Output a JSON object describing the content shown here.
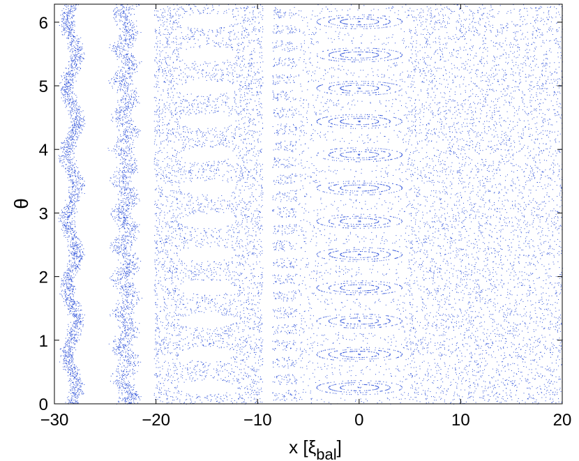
{
  "chart_data": {
    "type": "scatter",
    "title": "",
    "xlabel": {
      "base": "x [ξ",
      "subscript": "bal",
      "suffix": "]"
    },
    "ylabel": "θ",
    "xlim": [
      -30,
      20
    ],
    "ylim": [
      0,
      6.2832
    ],
    "xticks": [
      -30,
      -20,
      -10,
      0,
      10,
      20
    ],
    "xtick_labels": [
      "−30",
      "−20",
      "−10",
      "0",
      "10",
      "20"
    ],
    "yticks": [
      0,
      1,
      2,
      3,
      4,
      5,
      6
    ],
    "ytick_labels": [
      "0",
      "1",
      "2",
      "3",
      "4",
      "5",
      "6"
    ],
    "grid": false,
    "legend": "none",
    "point_color": "#2b4fd8",
    "regions": [
      {
        "kind": "wavy-band",
        "center_x": -28.3,
        "half_width": 0.9,
        "amplitude": 0.5,
        "wavelength": 1.05
      },
      {
        "kind": "wavy-band",
        "center_x": -23.0,
        "half_width": 1.3,
        "amplitude": 0.45,
        "wavelength": 0.52
      },
      {
        "kind": "island-chain",
        "x_min": -20.2,
        "x_max": -9.5,
        "island_center_x": -15.0,
        "island_half_width": 2.8,
        "island_half_height": 0.11,
        "island_count": 12
      },
      {
        "kind": "crescents",
        "x_min": -9.0,
        "x_max": -6.0,
        "count": 24
      },
      {
        "kind": "island-chain-rings",
        "x_min": -6.0,
        "x_max": 4.8,
        "island_center_x": 0.0,
        "rx": 4.2,
        "ry": 0.11,
        "island_count": 12,
        "y_start": 0.26,
        "spacing": 0.523
      },
      {
        "kind": "chaotic-sea",
        "x_min": 4.8,
        "x_max": 20.0
      }
    ]
  }
}
